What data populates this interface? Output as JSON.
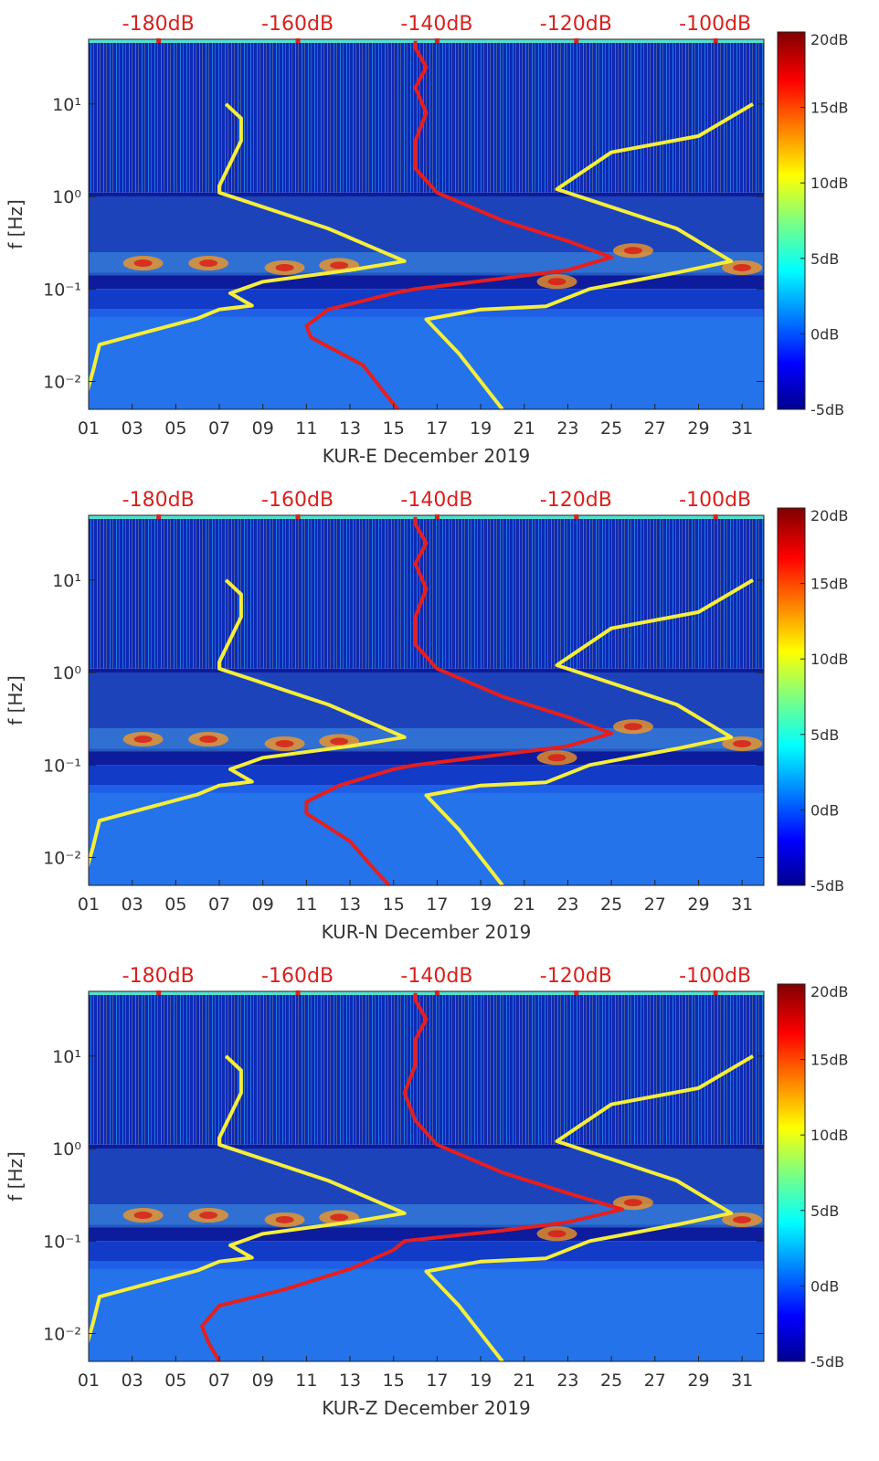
{
  "colors": {
    "red_curve": "#e61e1e",
    "yellow_curve": "#f5ee3b",
    "top_label": "#d8221e",
    "background_deep": "#0a1590",
    "background_mid": "#1a4ce0"
  },
  "chart_data": [
    {
      "type": "heatmap",
      "xlabel": "KUR-E December 2019",
      "ylabel": "f [Hz]",
      "yscale": "log",
      "xlim": [
        1,
        32
      ],
      "ylim": [
        0.005,
        50
      ],
      "x_ticks": [
        "01",
        "03",
        "05",
        "07",
        "09",
        "11",
        "13",
        "15",
        "17",
        "19",
        "21",
        "23",
        "25",
        "27",
        "29",
        "31"
      ],
      "y_ticks": [
        "10⁻²",
        "10⁻¹",
        "10⁰",
        "10¹"
      ],
      "top_axis": {
        "ticks": [
          "-180dB",
          "-160dB",
          "-140dB",
          "-120dB",
          "-100dB"
        ],
        "values": [
          -180,
          -160,
          -140,
          -120,
          -100
        ],
        "range": [
          -190,
          -93
        ]
      },
      "colorbar": {
        "ticks": [
          "20dB",
          "15dB",
          "10dB",
          "5dB",
          "0dB",
          "-5dB"
        ],
        "values": [
          20,
          15,
          10,
          5,
          0,
          -5
        ],
        "range": [
          -5,
          20
        ],
        "colormap": "jet"
      },
      "series": [
        {
          "color": "yellow",
          "points": [
            [
              0.7,
              0.005
            ],
            [
              1.2,
              0.013
            ],
            [
              1.5,
              0.025
            ],
            [
              4,
              0.036
            ],
            [
              6,
              0.048
            ],
            [
              7,
              0.06
            ],
            [
              8.5,
              0.066
            ],
            [
              7.5,
              0.09
            ],
            [
              9,
              0.12
            ],
            [
              13,
              0.16
            ],
            [
              15.5,
              0.2
            ],
            [
              12,
              0.45
            ],
            [
              7,
              1.1
            ],
            [
              7,
              1.3
            ],
            [
              8,
              4
            ],
            [
              8,
              7
            ],
            [
              7.3,
              10
            ]
          ]
        },
        {
          "color": "yellow",
          "points": [
            [
              20,
              0.005
            ],
            [
              18,
              0.02
            ],
            [
              16.5,
              0.047
            ],
            [
              19,
              0.06
            ],
            [
              22,
              0.065
            ],
            [
              24,
              0.1
            ],
            [
              28,
              0.15
            ],
            [
              30.5,
              0.2
            ],
            [
              28,
              0.45
            ],
            [
              22.5,
              1.2
            ],
            [
              25,
              3
            ],
            [
              29,
              4.5
            ],
            [
              31.5,
              10
            ]
          ]
        },
        {
          "color": "red",
          "points": [
            [
              15.2,
              0.005
            ],
            [
              14.5,
              0.008
            ],
            [
              13.6,
              0.015
            ],
            [
              11.2,
              0.03
            ],
            [
              11,
              0.04
            ],
            [
              12,
              0.06
            ],
            [
              15,
              0.09
            ],
            [
              16,
              0.1
            ],
            [
              20,
              0.13
            ],
            [
              23,
              0.16
            ],
            [
              25,
              0.22
            ],
            [
              23,
              0.33
            ],
            [
              20,
              0.55
            ],
            [
              17,
              1.1
            ],
            [
              16,
              2
            ],
            [
              16,
              4
            ],
            [
              16.5,
              8
            ],
            [
              16,
              15
            ],
            [
              16.5,
              25
            ],
            [
              16,
              40
            ],
            [
              16,
              48
            ]
          ]
        }
      ]
    },
    {
      "type": "heatmap",
      "xlabel": "KUR-N December 2019",
      "ylabel": "f [Hz]",
      "yscale": "log",
      "xlim": [
        1,
        32
      ],
      "ylim": [
        0.005,
        50
      ],
      "x_ticks": [
        "01",
        "03",
        "05",
        "07",
        "09",
        "11",
        "13",
        "15",
        "17",
        "19",
        "21",
        "23",
        "25",
        "27",
        "29",
        "31"
      ],
      "y_ticks": [
        "10⁻²",
        "10⁻¹",
        "10⁰",
        "10¹"
      ],
      "top_axis": {
        "ticks": [
          "-180dB",
          "-160dB",
          "-140dB",
          "-120dB",
          "-100dB"
        ],
        "values": [
          -180,
          -160,
          -140,
          -120,
          -100
        ],
        "range": [
          -190,
          -93
        ]
      },
      "colorbar": {
        "ticks": [
          "20dB",
          "15dB",
          "10dB",
          "5dB",
          "0dB",
          "-5dB"
        ],
        "values": [
          20,
          15,
          10,
          5,
          0,
          -5
        ],
        "range": [
          -5,
          20
        ],
        "colormap": "jet"
      },
      "series": [
        {
          "color": "yellow",
          "points": [
            [
              0.7,
              0.005
            ],
            [
              1.2,
              0.013
            ],
            [
              1.5,
              0.025
            ],
            [
              4,
              0.036
            ],
            [
              6,
              0.048
            ],
            [
              7,
              0.06
            ],
            [
              8.5,
              0.066
            ],
            [
              7.5,
              0.09
            ],
            [
              9,
              0.12
            ],
            [
              13,
              0.16
            ],
            [
              15.5,
              0.2
            ],
            [
              12,
              0.45
            ],
            [
              7,
              1.1
            ],
            [
              7,
              1.3
            ],
            [
              8,
              4
            ],
            [
              8,
              7
            ],
            [
              7.3,
              10
            ]
          ]
        },
        {
          "color": "yellow",
          "points": [
            [
              20,
              0.005
            ],
            [
              18,
              0.02
            ],
            [
              16.5,
              0.047
            ],
            [
              19,
              0.06
            ],
            [
              22,
              0.065
            ],
            [
              24,
              0.1
            ],
            [
              28,
              0.15
            ],
            [
              30.5,
              0.2
            ],
            [
              28,
              0.45
            ],
            [
              22.5,
              1.2
            ],
            [
              25,
              3
            ],
            [
              29,
              4.5
            ],
            [
              31.5,
              10
            ]
          ]
        },
        {
          "color": "red",
          "points": [
            [
              14.8,
              0.005
            ],
            [
              14,
              0.008
            ],
            [
              13,
              0.015
            ],
            [
              11,
              0.03
            ],
            [
              11,
              0.04
            ],
            [
              12.5,
              0.06
            ],
            [
              15,
              0.09
            ],
            [
              16,
              0.1
            ],
            [
              20,
              0.13
            ],
            [
              23,
              0.16
            ],
            [
              25,
              0.22
            ],
            [
              23,
              0.33
            ],
            [
              20,
              0.55
            ],
            [
              17,
              1.1
            ],
            [
              16,
              2
            ],
            [
              16,
              4
            ],
            [
              16.5,
              8
            ],
            [
              16,
              15
            ],
            [
              16.5,
              25
            ],
            [
              16,
              40
            ],
            [
              16,
              48
            ]
          ]
        }
      ]
    },
    {
      "type": "heatmap",
      "xlabel": "KUR-Z December 2019",
      "ylabel": "f [Hz]",
      "yscale": "log",
      "xlim": [
        1,
        32
      ],
      "ylim": [
        0.005,
        50
      ],
      "x_ticks": [
        "01",
        "03",
        "05",
        "07",
        "09",
        "11",
        "13",
        "15",
        "17",
        "19",
        "21",
        "23",
        "25",
        "27",
        "29",
        "31"
      ],
      "y_ticks": [
        "10⁻²",
        "10⁻¹",
        "10⁰",
        "10¹"
      ],
      "top_axis": {
        "ticks": [
          "-180dB",
          "-160dB",
          "-140dB",
          "-120dB",
          "-100dB"
        ],
        "values": [
          -180,
          -160,
          -140,
          -120,
          -100
        ],
        "range": [
          -190,
          -93
        ]
      },
      "colorbar": {
        "ticks": [
          "20dB",
          "15dB",
          "10dB",
          "5dB",
          "0dB",
          "-5dB"
        ],
        "values": [
          20,
          15,
          10,
          5,
          0,
          -5
        ],
        "range": [
          -5,
          20
        ],
        "colormap": "jet"
      },
      "series": [
        {
          "color": "yellow",
          "points": [
            [
              0.7,
              0.005
            ],
            [
              1.2,
              0.013
            ],
            [
              1.5,
              0.025
            ],
            [
              4,
              0.036
            ],
            [
              6,
              0.048
            ],
            [
              7,
              0.06
            ],
            [
              8.5,
              0.066
            ],
            [
              7.5,
              0.09
            ],
            [
              9,
              0.12
            ],
            [
              13,
              0.16
            ],
            [
              15.5,
              0.2
            ],
            [
              12,
              0.45
            ],
            [
              7,
              1.1
            ],
            [
              7,
              1.3
            ],
            [
              8,
              4
            ],
            [
              8,
              7
            ],
            [
              7.3,
              10
            ]
          ]
        },
        {
          "color": "yellow",
          "points": [
            [
              20,
              0.005
            ],
            [
              18,
              0.02
            ],
            [
              16.5,
              0.047
            ],
            [
              19,
              0.06
            ],
            [
              22,
              0.065
            ],
            [
              24,
              0.1
            ],
            [
              28,
              0.15
            ],
            [
              30.5,
              0.2
            ],
            [
              28,
              0.45
            ],
            [
              22.5,
              1.2
            ],
            [
              25,
              3
            ],
            [
              29,
              4.5
            ],
            [
              31.5,
              10
            ]
          ]
        },
        {
          "color": "red",
          "points": [
            [
              7,
              0.005
            ],
            [
              6.5,
              0.008
            ],
            [
              6.2,
              0.012
            ],
            [
              7,
              0.02
            ],
            [
              10,
              0.03
            ],
            [
              13,
              0.05
            ],
            [
              15,
              0.08
            ],
            [
              15.5,
              0.1
            ],
            [
              20,
              0.13
            ],
            [
              23,
              0.16
            ],
            [
              25.5,
              0.22
            ],
            [
              23,
              0.33
            ],
            [
              20,
              0.55
            ],
            [
              17,
              1.1
            ],
            [
              16,
              2
            ],
            [
              15.5,
              4
            ],
            [
              16,
              8
            ],
            [
              16,
              15
            ],
            [
              16.5,
              25
            ],
            [
              16,
              40
            ],
            [
              16,
              48
            ]
          ]
        }
      ]
    }
  ]
}
